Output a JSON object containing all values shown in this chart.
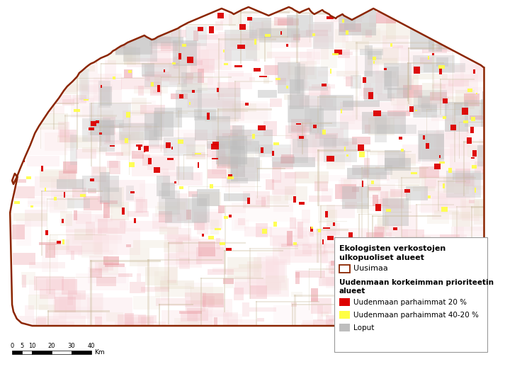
{
  "border_color": "#8B2500",
  "fig_bg": "#FFFFFF",
  "legend_title_line1": "Ekologisten verkostojen",
  "legend_title_line2": "ulkopuoliset alueet",
  "legend_uusimaa": "Uusimaa",
  "legend_subheading_line1": "Uudenmaan korkeimman prioriteetin",
  "legend_subheading_line2": "alueet",
  "legend_red_label": "Uudenmaan parhaimmat 20 %",
  "legend_yellow_label": "Uudenmaan parhaimmat 40-20 %",
  "legend_gray_label": "Loput",
  "scale_label": "Km",
  "scale_ticks": [
    0,
    5,
    10,
    20,
    30,
    40
  ],
  "map_colors": {
    "light_pink": "#F2B8C0",
    "pink": "#E89098",
    "very_light_pink": "#FAE0E4",
    "red": "#DD0000",
    "yellow": "#FFFF44",
    "gray": "#BEBEBE",
    "light_gray": "#D5D5D5",
    "tan": "#C8B898",
    "light_tan": "#E8DCc8",
    "brown_line": "#A06040"
  },
  "boundary": {
    "top_x": [
      15,
      18,
      22,
      26,
      22,
      18,
      20,
      25,
      30,
      38,
      45,
      52,
      58,
      65,
      72,
      80,
      88,
      95,
      100,
      108,
      115,
      118,
      122,
      128,
      132,
      135,
      140,
      145,
      150,
      155,
      160,
      165,
      168,
      172,
      175,
      180,
      185,
      190,
      195,
      200,
      205,
      210,
      215,
      218,
      222,
      226,
      230,
      235,
      240,
      245,
      250,
      255,
      260,
      265,
      268,
      272,
      276,
      280,
      285,
      290,
      295,
      300,
      305,
      310,
      315,
      320,
      325,
      330,
      335,
      340,
      345,
      348,
      352,
      356,
      360,
      365,
      370,
      375,
      380,
      385,
      390,
      395,
      400,
      405,
      410,
      415,
      420,
      425,
      430,
      435,
      438,
      442,
      446,
      450,
      455,
      460,
      462,
      465,
      468,
      472,
      476,
      480,
      482,
      486,
      490,
      492,
      496,
      500,
      502,
      506,
      510,
      512,
      516,
      520,
      524,
      528,
      532,
      536,
      540,
      544,
      548,
      552,
      556,
      560,
      564,
      568,
      572,
      576,
      580,
      584,
      588,
      592,
      596,
      600,
      604,
      608,
      612,
      616,
      620,
      624,
      628,
      632,
      636,
      640,
      644,
      648,
      652,
      656,
      660,
      664,
      668,
      672,
      676,
      680,
      684,
      688,
      692,
      696,
      700,
      704,
      708,
      712,
      716,
      720
    ],
    "top_y": [
      300,
      285,
      268,
      250,
      245,
      255,
      260,
      250,
      238,
      220,
      205,
      188,
      178,
      168,
      158,
      148,
      138,
      128,
      122,
      115,
      108,
      103,
      100,
      95,
      92,
      90,
      88,
      85,
      82,
      80,
      78,
      75,
      72,
      70,
      68,
      65,
      63,
      60,
      58,
      56,
      54,
      52,
      50,
      52,
      54,
      56,
      55,
      52,
      50,
      48,
      46,
      44,
      42,
      40,
      38,
      36,
      34,
      32,
      30,
      28,
      26,
      24,
      22,
      20,
      18,
      16,
      14,
      12,
      14,
      16,
      18,
      20,
      18,
      16,
      14,
      12,
      10,
      12,
      14,
      16,
      18,
      20,
      22,
      20,
      18,
      16,
      14,
      12,
      10,
      12,
      14,
      16,
      18,
      16,
      14,
      12,
      15,
      18,
      20,
      18,
      16,
      14,
      16,
      18,
      20,
      22,
      24,
      26,
      24,
      22,
      20,
      22,
      24,
      26,
      28,
      26,
      24,
      22,
      20,
      18,
      16,
      14,
      12,
      14,
      16,
      18,
      20,
      22,
      24,
      26,
      28,
      30,
      32,
      34,
      36,
      38,
      40,
      42,
      44,
      46,
      48,
      50,
      52,
      54,
      56,
      58,
      60,
      62,
      64,
      66,
      68,
      70,
      72,
      74,
      76,
      78,
      80,
      82,
      84,
      86,
      88,
      90,
      92,
      95
    ],
    "bot_x": [
      720,
      716,
      710,
      704,
      698,
      692,
      686,
      680,
      674,
      668,
      662,
      656,
      650,
      644,
      638,
      632,
      626,
      620,
      614,
      608,
      602,
      596,
      590,
      584,
      578,
      572,
      566,
      560,
      554,
      548,
      542,
      536,
      530,
      524,
      518,
      512,
      506,
      500,
      494,
      488,
      482,
      476,
      470,
      464,
      458,
      452,
      446,
      440,
      434,
      428,
      422,
      416,
      410,
      404,
      398,
      392,
      386,
      380,
      374,
      368,
      362,
      356,
      350,
      344,
      338,
      332,
      326,
      320,
      314,
      308,
      302,
      296,
      290,
      284,
      278,
      272,
      266,
      260,
      254,
      248,
      242,
      236,
      230,
      224,
      218,
      212,
      206,
      200,
      194,
      188,
      182,
      176,
      170,
      164,
      158,
      152,
      146,
      140,
      134,
      128,
      122,
      116,
      110,
      104,
      98,
      92,
      86,
      80,
      74,
      68,
      62,
      55,
      48,
      40,
      32,
      25,
      20,
      18,
      15
    ],
    "bot_y": [
      455,
      456,
      457,
      458,
      458,
      458,
      459,
      460,
      460,
      460,
      460,
      460,
      460,
      460,
      460,
      460,
      460,
      460,
      460,
      460,
      460,
      460,
      460,
      460,
      460,
      460,
      460,
      460,
      460,
      460,
      460,
      460,
      460,
      460,
      460,
      460,
      460,
      460,
      460,
      460,
      460,
      460,
      460,
      460,
      460,
      460,
      460,
      460,
      460,
      460,
      460,
      460,
      460,
      460,
      460,
      460,
      460,
      460,
      460,
      460,
      460,
      460,
      460,
      460,
      460,
      460,
      460,
      460,
      460,
      460,
      460,
      460,
      460,
      460,
      460,
      460,
      460,
      460,
      460,
      460,
      460,
      460,
      460,
      460,
      460,
      460,
      460,
      460,
      460,
      460,
      460,
      460,
      460,
      460,
      460,
      460,
      460,
      460,
      460,
      460,
      460,
      460,
      460,
      460,
      460,
      460,
      460,
      460,
      460,
      460,
      460,
      460,
      460,
      458,
      456,
      450,
      440,
      430,
      300
    ]
  }
}
